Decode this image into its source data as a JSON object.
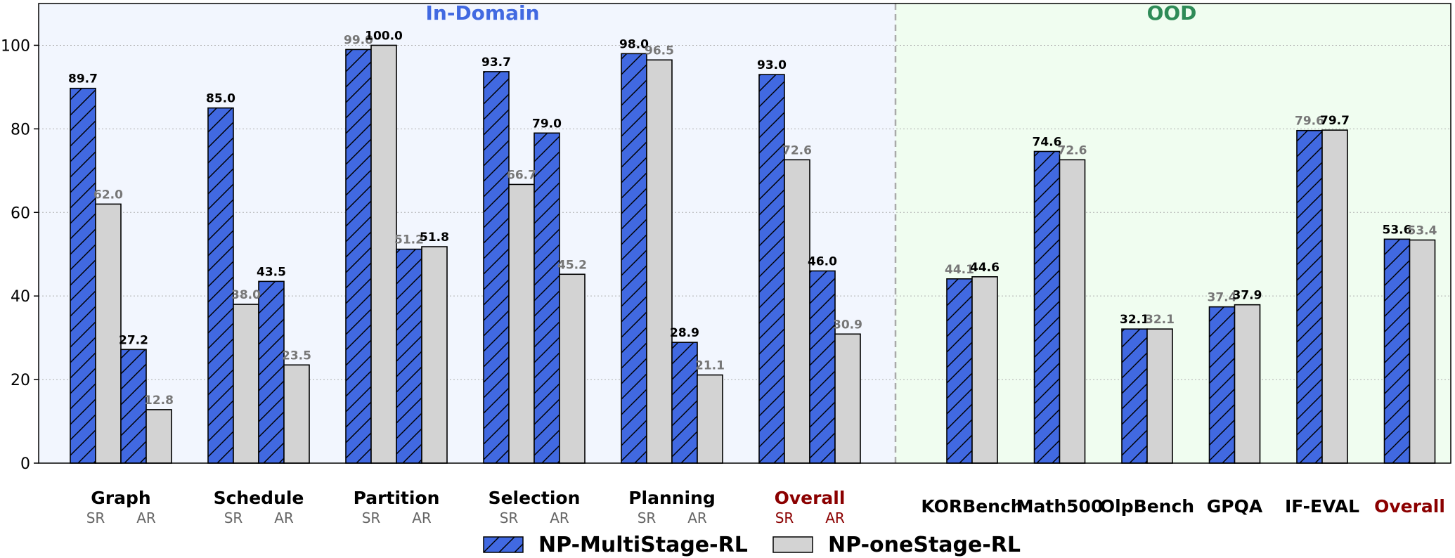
{
  "chart_data": {
    "type": "bar",
    "ylim": [
      0,
      110
    ],
    "yticks": [
      "0",
      "20",
      "40",
      "60",
      "80",
      "100"
    ],
    "grid": "horizontal dotted",
    "regions": [
      {
        "title": "In-Domain",
        "color": "#4169e1",
        "background": "#f2f6fe"
      },
      {
        "title": "OOD",
        "color": "#2e8b57",
        "background": "#f0fdf0"
      }
    ],
    "series": [
      {
        "name": "NP-MultiStage-RL",
        "color": "#4169e1",
        "hatch": "diagonal"
      },
      {
        "name": "NP-oneStage-RL",
        "color": "#d3d3d3",
        "hatch": "none"
      }
    ],
    "in_domain_groups": [
      {
        "category": "Graph",
        "highlight": false,
        "sub_labels": [
          "SR",
          "AR"
        ],
        "SR": {
          "multi": 89.7,
          "multi_label": "89.7",
          "one": 62.0,
          "one_label": "62.0",
          "higher": "multi"
        },
        "AR": {
          "multi": 27.2,
          "multi_label": "27.2",
          "one": 12.8,
          "one_label": "12.8",
          "higher": "multi"
        }
      },
      {
        "category": "Schedule",
        "highlight": false,
        "sub_labels": [
          "SR",
          "AR"
        ],
        "SR": {
          "multi": 85.0,
          "multi_label": "85.0",
          "one": 38.0,
          "one_label": "38.0",
          "higher": "multi"
        },
        "AR": {
          "multi": 43.5,
          "multi_label": "43.5",
          "one": 23.5,
          "one_label": "23.5",
          "higher": "multi"
        }
      },
      {
        "category": "Partition",
        "highlight": false,
        "sub_labels": [
          "SR",
          "AR"
        ],
        "SR": {
          "multi": 99.0,
          "multi_label": "99.0",
          "one": 100.0,
          "one_label": "100.0",
          "higher": "one"
        },
        "AR": {
          "multi": 51.2,
          "multi_label": "51.2",
          "one": 51.8,
          "one_label": "51.8",
          "higher": "one"
        }
      },
      {
        "category": "Selection",
        "highlight": false,
        "sub_labels": [
          "SR",
          "AR"
        ],
        "SR": {
          "multi": 93.7,
          "multi_label": "93.7",
          "one": 66.7,
          "one_label": "66.7",
          "higher": "multi"
        },
        "AR": {
          "multi": 79.0,
          "multi_label": "79.0",
          "one": 45.2,
          "one_label": "45.2",
          "higher": "multi"
        }
      },
      {
        "category": "Planning",
        "highlight": false,
        "sub_labels": [
          "SR",
          "AR"
        ],
        "SR": {
          "multi": 98.0,
          "multi_label": "98.0",
          "one": 96.5,
          "one_label": "96.5",
          "higher": "multi"
        },
        "AR": {
          "multi": 28.9,
          "multi_label": "28.9",
          "one": 21.1,
          "one_label": "21.1",
          "higher": "multi"
        }
      },
      {
        "category": "Overall",
        "highlight": true,
        "sub_labels": [
          "SR",
          "AR"
        ],
        "SR": {
          "multi": 93.0,
          "multi_label": "93.0",
          "one": 72.6,
          "one_label": "72.6",
          "higher": "multi"
        },
        "AR": {
          "multi": 46.0,
          "multi_label": "46.0",
          "one": 30.9,
          "one_label": "30.9",
          "higher": "multi"
        }
      }
    ],
    "ood_groups": [
      {
        "category": "KORBench",
        "highlight": false,
        "multi": 44.1,
        "multi_label": "44.1",
        "one": 44.6,
        "one_label": "44.6",
        "higher": "one"
      },
      {
        "category": "Math500",
        "highlight": false,
        "multi": 74.6,
        "multi_label": "74.6",
        "one": 72.6,
        "one_label": "72.6",
        "higher": "multi"
      },
      {
        "category": "OlpBench",
        "highlight": false,
        "multi": 32.1,
        "multi_label": "32.1",
        "one": 32.1,
        "one_label": "32.1",
        "higher": "multi"
      },
      {
        "category": "GPQA",
        "highlight": false,
        "multi": 37.4,
        "multi_label": "37.4",
        "one": 37.9,
        "one_label": "37.9",
        "higher": "one"
      },
      {
        "category": "IF-EVAL",
        "highlight": false,
        "multi": 79.6,
        "multi_label": "79.6",
        "one": 79.7,
        "one_label": "79.7",
        "higher": "one"
      },
      {
        "category": "Overall",
        "highlight": true,
        "multi": 53.6,
        "multi_label": "53.6",
        "one": 53.4,
        "one_label": "53.4",
        "higher": "multi"
      }
    ],
    "colors": {
      "highlight_label": "#8b0000",
      "winner_value": "#000000",
      "loser_value": "#777777",
      "sub_label": "#666666",
      "divider": "#a9a9a9",
      "grid": "#b0b0b0"
    }
  }
}
